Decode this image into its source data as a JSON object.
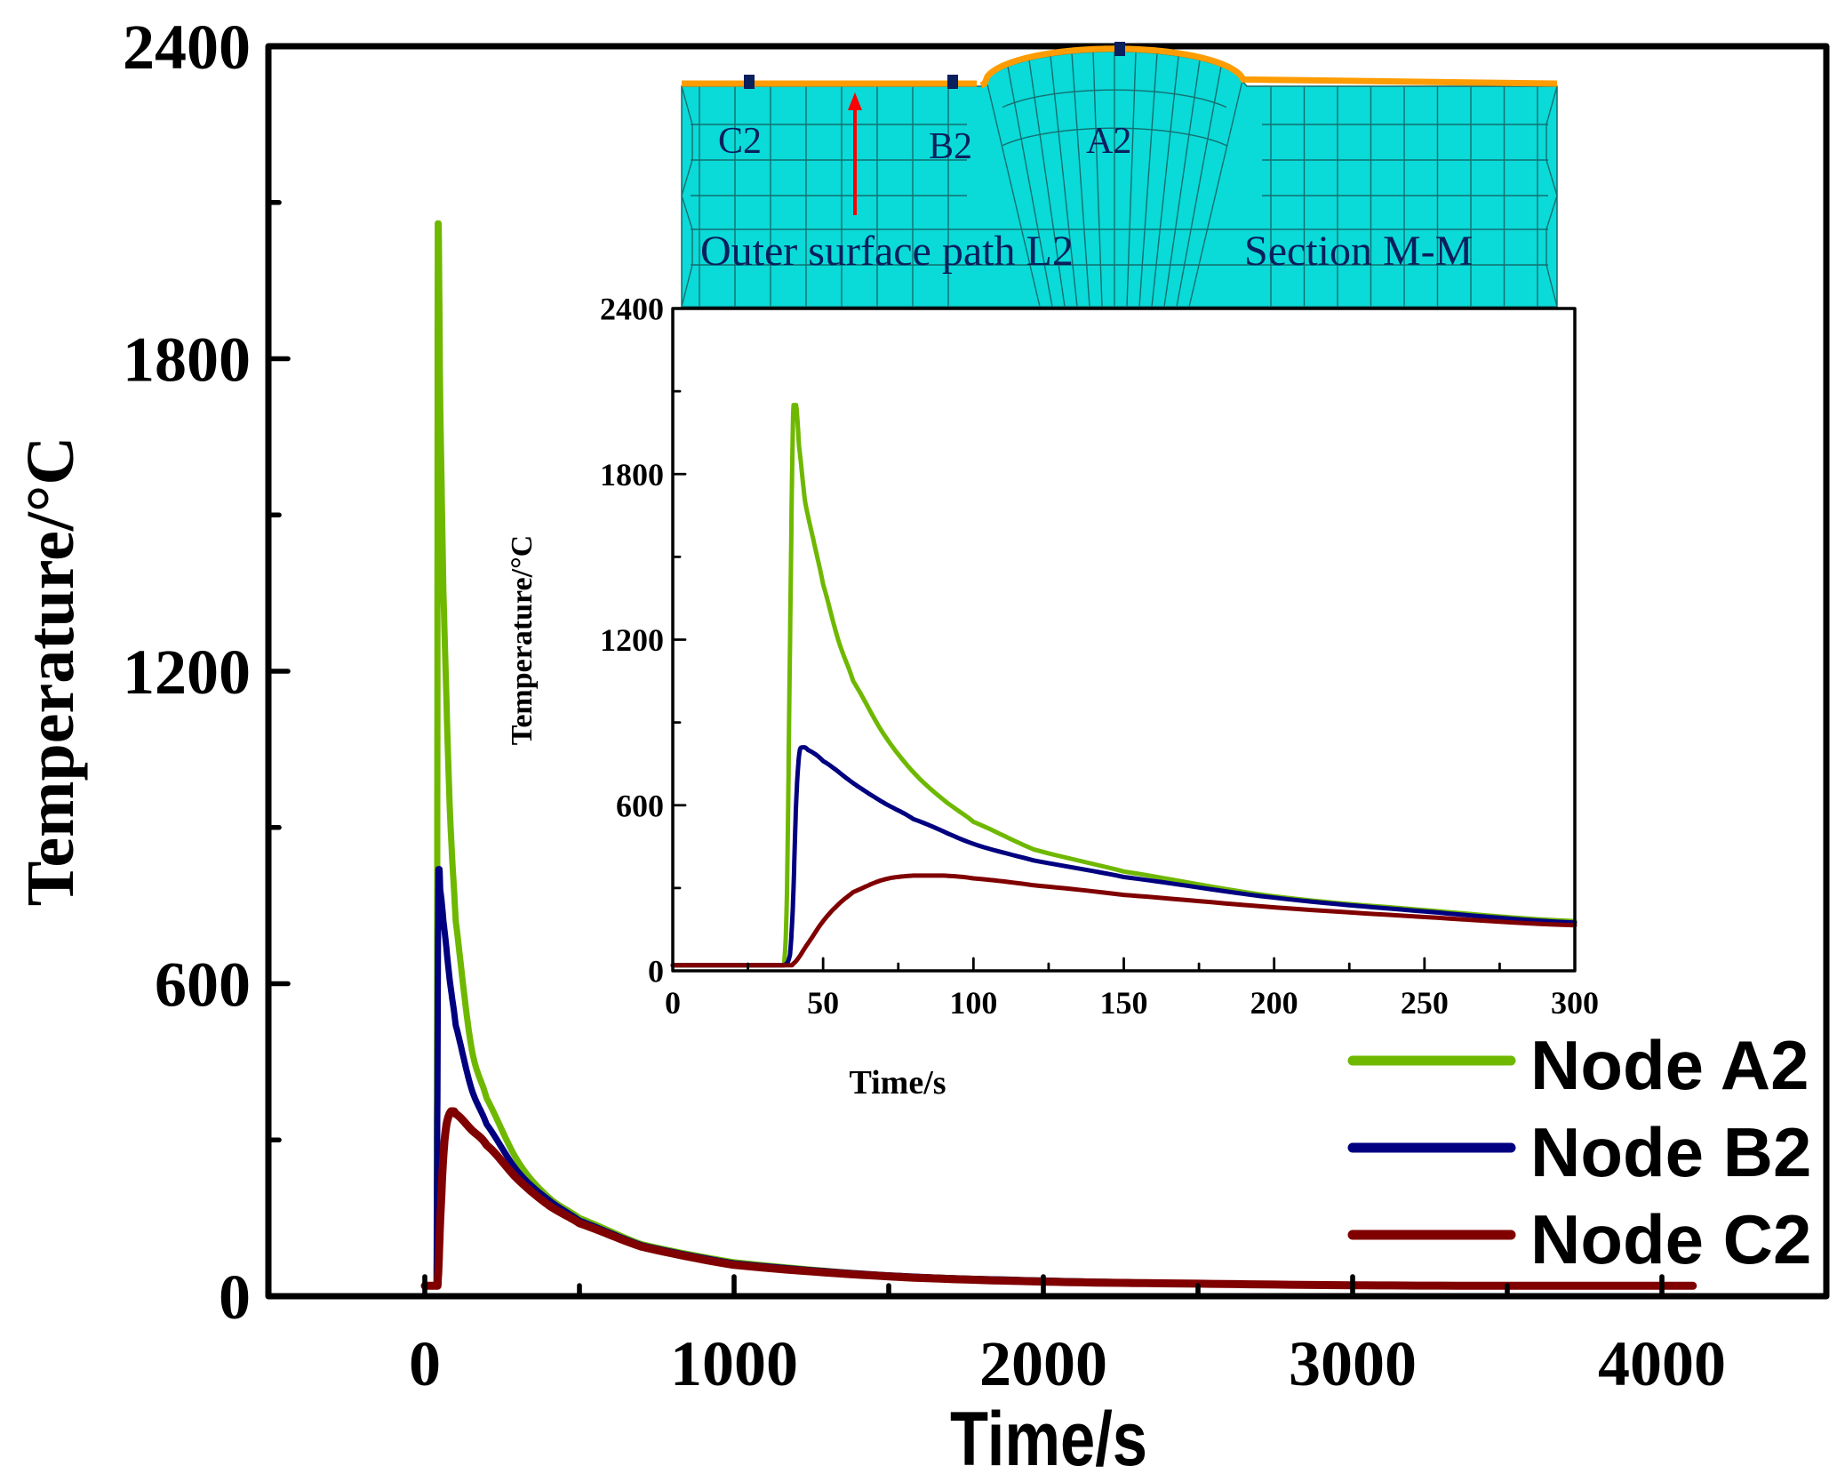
{
  "chart_data": [
    {
      "id": "main",
      "type": "line",
      "title": "",
      "xlabel": "Time/s",
      "ylabel": "Temperature/°C",
      "xlim": [
        -500,
        4400
      ],
      "ylim": [
        0,
        2400
      ],
      "xticks": [
        0,
        1000,
        2000,
        3000,
        4000
      ],
      "xtick_labels": [
        "0",
        "1000",
        "2000",
        "3000",
        "4000"
      ],
      "xminor_ticks": [
        500,
        1500,
        2500,
        3500
      ],
      "yticks": [
        0,
        600,
        1200,
        1800,
        2400
      ],
      "ytick_labels": [
        "0",
        "600",
        "1200",
        "1800",
        "2400"
      ],
      "yminor_ticks": [
        300,
        900,
        1500,
        2100
      ],
      "grid": false,
      "legend_position": "bottom-right",
      "series": [
        {
          "name": "Node A2",
          "color": "#6fb800",
          "x": [
            0,
            38,
            40,
            42,
            50,
            60,
            80,
            100,
            150,
            200,
            300,
            400,
            500,
            700,
            1000,
            1500,
            2000,
            2500,
            3000,
            3500,
            4100
          ],
          "y": [
            20,
            20,
            700,
            2060,
            1700,
            1350,
            950,
            720,
            480,
            380,
            260,
            190,
            150,
            100,
            65,
            40,
            30,
            25,
            22,
            20,
            20
          ]
        },
        {
          "name": "Node B2",
          "color": "#000080",
          "x": [
            0,
            38,
            40,
            44,
            50,
            60,
            80,
            100,
            150,
            200,
            300,
            400,
            500,
            700,
            1000,
            1500,
            2000,
            2500,
            3000,
            3500,
            4100
          ],
          "y": [
            20,
            20,
            300,
            820,
            780,
            720,
            610,
            520,
            400,
            330,
            240,
            185,
            145,
            98,
            63,
            40,
            30,
            25,
            22,
            20,
            20
          ]
        },
        {
          "name": "Node C2",
          "color": "#800000",
          "x": [
            0,
            38,
            42,
            50,
            60,
            70,
            85,
            100,
            150,
            200,
            300,
            400,
            500,
            700,
            1000,
            1500,
            2000,
            2500,
            3000,
            3500,
            4100
          ],
          "y": [
            20,
            20,
            30,
            150,
            270,
            330,
            355,
            350,
            320,
            290,
            225,
            175,
            140,
            95,
            60,
            38,
            28,
            24,
            21,
            20,
            20
          ]
        }
      ]
    },
    {
      "id": "inset",
      "type": "line",
      "title": "",
      "xlabel": "Time/s",
      "ylabel": "Temperature/°C",
      "xlim": [
        0,
        300
      ],
      "ylim": [
        0,
        2400
      ],
      "xticks": [
        0,
        50,
        100,
        150,
        200,
        250,
        300
      ],
      "xtick_labels": [
        "0",
        "50",
        "100",
        "150",
        "200",
        "250",
        "300"
      ],
      "xminor_ticks": [
        25,
        75,
        125,
        175,
        225,
        275
      ],
      "yticks": [
        0,
        600,
        1200,
        1800,
        2400
      ],
      "ytick_labels": [
        "0",
        "600",
        "1200",
        "1800",
        "2400"
      ],
      "yminor_ticks": [
        300,
        900,
        1500,
        2100
      ],
      "grid": false,
      "series": [
        {
          "name": "Node A2",
          "color": "#6fb800",
          "x": [
            0,
            37,
            38,
            39,
            40,
            41,
            42,
            44,
            47,
            50,
            55,
            60,
            70,
            80,
            90,
            100,
            120,
            150,
            200,
            250,
            300
          ],
          "y": [
            20,
            20,
            300,
            1200,
            2000,
            2050,
            1900,
            1700,
            1550,
            1400,
            1200,
            1050,
            860,
            720,
            620,
            540,
            440,
            360,
            270,
            220,
            180
          ]
        },
        {
          "name": "Node B2",
          "color": "#000080",
          "x": [
            0,
            37,
            39,
            40,
            41,
            42,
            43,
            45,
            50,
            60,
            70,
            80,
            100,
            120,
            150,
            200,
            250,
            300
          ],
          "y": [
            20,
            20,
            60,
            250,
            600,
            780,
            810,
            800,
            760,
            680,
            610,
            550,
            460,
            400,
            340,
            265,
            215,
            175
          ]
        },
        {
          "name": "Node C2",
          "color": "#800000",
          "x": [
            0,
            38,
            40,
            45,
            50,
            55,
            60,
            70,
            80,
            90,
            100,
            120,
            150,
            200,
            250,
            300
          ],
          "y": [
            20,
            20,
            25,
            100,
            180,
            240,
            285,
            330,
            345,
            345,
            335,
            310,
            275,
            230,
            195,
            165
          ]
        }
      ]
    }
  ],
  "legend": {
    "items": [
      {
        "label": "Node A2",
        "color": "#6fb800"
      },
      {
        "label": "Node B2",
        "color": "#000080"
      },
      {
        "label": "Node C2",
        "color": "#800000"
      }
    ]
  },
  "diagram": {
    "section_label": "Section M-M",
    "path_label": "Outer surface path L2",
    "node_labels": [
      "C2",
      "B2",
      "A2"
    ],
    "mesh_color": "#0adad8",
    "surface_color": "#ff9c00",
    "text_color": "#0a1f5e",
    "arrow_color": "#ff0000",
    "marker_color": "#0a1f5e"
  }
}
